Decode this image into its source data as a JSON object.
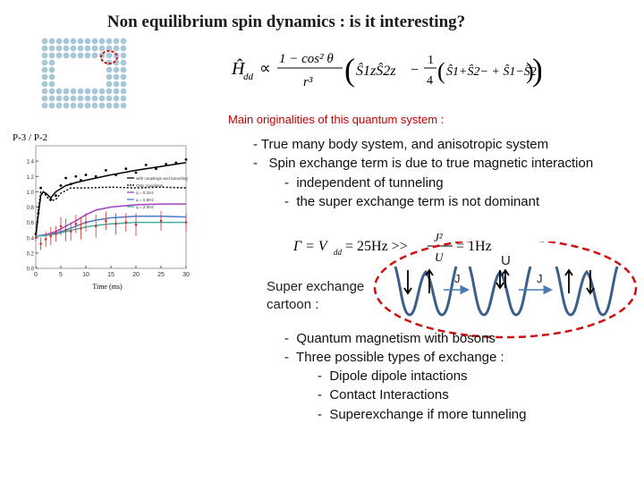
{
  "slide": {
    "title": "Non equilibrium spin dynamics : is it interesting?",
    "subtitle": "Main originalities of this quantum system :"
  },
  "bullets": {
    "b1": "- True many body system, and anisotropic system",
    "b2": "-   Spin exchange term is due to true magnetic interaction",
    "b3": "-  independent of tunneling",
    "b4": "-  the super exchange term is not dominant"
  },
  "hamiltonian": {
    "lhs": "Ĥ",
    "lhs_sub": "dd",
    "prop": "∝",
    "num": "1 − cos² θ",
    "den": "r³",
    "t1": "Ŝ1zŜ2z",
    "minus": "−",
    "half_num": "1",
    "half_den": "4",
    "t2": "Ŝ1+Ŝ2− + Ŝ1−Ŝ2+"
  },
  "rate_eq": {
    "gamma": "Γ = V",
    "gamma_sub": "dd",
    "value": "= 25Hz >>",
    "J2": "J²",
    "U": "U",
    "tail": "= 1Hz"
  },
  "cartoon": {
    "label_line1": "Super exchange",
    "label_line2": "cartoon :",
    "J_left": "J",
    "U_label": "U",
    "J_right": "J"
  },
  "bottom_bullets": {
    "b1": "-  Quantum magnetism with bosons",
    "b2": "-  Three possible types of exchange :",
    "c1": "-  Dipole dipole intactions",
    "c2": "-  Contact Interactions",
    "c3": "-  Superexchange if more tunneling"
  },
  "chart_data": {
    "type": "scatter",
    "title": "",
    "ylabel": "P-3 / P-2",
    "xlabel": "Time (ms)",
    "xlim": [
      0,
      30
    ],
    "ylim": [
      0,
      1.6
    ],
    "x_ticks": [
      "0",
      "5",
      "10",
      "15",
      "20",
      "25",
      "30"
    ],
    "y_ticks": [
      "0.0",
      "0.2",
      "0.4",
      "0.6",
      "0.8",
      "1.0",
      "1.2",
      "1.4"
    ],
    "legend": [
      "with couplings and tunneling",
      "Only couplings",
      "q = 0.1Hz",
      "q = 0.5Hz",
      "q = 2.0Hz"
    ],
    "series": [
      {
        "name": "with couplings and tunneling",
        "color": "#000000",
        "style": "line",
        "x": [
          0,
          0.5,
          1,
          1.5,
          2,
          3,
          4,
          6,
          8,
          10,
          15,
          20,
          25,
          30
        ],
        "y": [
          0.42,
          0.7,
          0.95,
          1.0,
          0.98,
          0.92,
          1.0,
          1.08,
          1.12,
          1.15,
          1.22,
          1.28,
          1.33,
          1.38
        ]
      },
      {
        "name": "Only couplings",
        "color": "#000000",
        "style": "dotted",
        "x": [
          0,
          0.5,
          1,
          1.5,
          2,
          3,
          4,
          5,
          7,
          10,
          15,
          20,
          25,
          30
        ],
        "y": [
          0.42,
          0.75,
          1.0,
          1.0,
          0.95,
          0.88,
          0.9,
          0.98,
          1.05,
          1.05,
          1.06,
          1.05,
          1.06,
          1.05
        ]
      },
      {
        "name": "q = 0.1Hz",
        "color": "#a040c0",
        "style": "line",
        "x": [
          0,
          2,
          4,
          6,
          8,
          10,
          12,
          15,
          20,
          25,
          30
        ],
        "y": [
          0.42,
          0.44,
          0.48,
          0.55,
          0.62,
          0.7,
          0.76,
          0.8,
          0.83,
          0.84,
          0.84
        ]
      },
      {
        "name": "q = 0.5Hz",
        "color": "#4a7ad0",
        "style": "line",
        "x": [
          0,
          2,
          4,
          6,
          8,
          10,
          12,
          15,
          20,
          25,
          30
        ],
        "y": [
          0.42,
          0.43,
          0.46,
          0.5,
          0.55,
          0.6,
          0.63,
          0.66,
          0.68,
          0.68,
          0.67
        ]
      },
      {
        "name": "q = 2.0Hz",
        "color": "#40b0a0",
        "style": "line",
        "x": [
          0,
          2,
          4,
          6,
          8,
          10,
          12,
          15,
          20,
          25,
          30
        ],
        "y": [
          0.42,
          0.43,
          0.45,
          0.48,
          0.51,
          0.54,
          0.56,
          0.58,
          0.6,
          0.6,
          0.6
        ]
      },
      {
        "name": "data black",
        "color": "#000000",
        "style": "points",
        "x": [
          0,
          0.5,
          1,
          2,
          3,
          4,
          5,
          6,
          7,
          8,
          9,
          10,
          12,
          14,
          16,
          18,
          20,
          22,
          24,
          26,
          28,
          30
        ],
        "y": [
          0.45,
          0.72,
          1.05,
          0.97,
          0.9,
          0.95,
          1.08,
          1.18,
          1.1,
          1.2,
          1.15,
          1.22,
          1.2,
          1.28,
          1.22,
          1.3,
          1.25,
          1.35,
          1.3,
          1.36,
          1.38,
          1.42
        ]
      },
      {
        "name": "data red",
        "color": "#d03030",
        "style": "errorbars",
        "x": [
          0,
          1,
          2,
          3,
          4,
          5,
          6,
          7,
          8,
          9,
          10,
          12,
          14,
          16,
          18,
          20,
          25,
          30
        ],
        "y": [
          0.4,
          0.32,
          0.38,
          0.42,
          0.45,
          0.55,
          0.5,
          0.48,
          0.58,
          0.52,
          0.6,
          0.55,
          0.62,
          0.58,
          0.6,
          0.57,
          0.62,
          0.6
        ],
        "err": [
          0.05,
          0.08,
          0.1,
          0.12,
          0.1,
          0.12,
          0.15,
          0.12,
          0.12,
          0.14,
          0.12,
          0.15,
          0.12,
          0.14,
          0.12,
          0.15,
          0.13,
          0.12
        ]
      }
    ]
  }
}
